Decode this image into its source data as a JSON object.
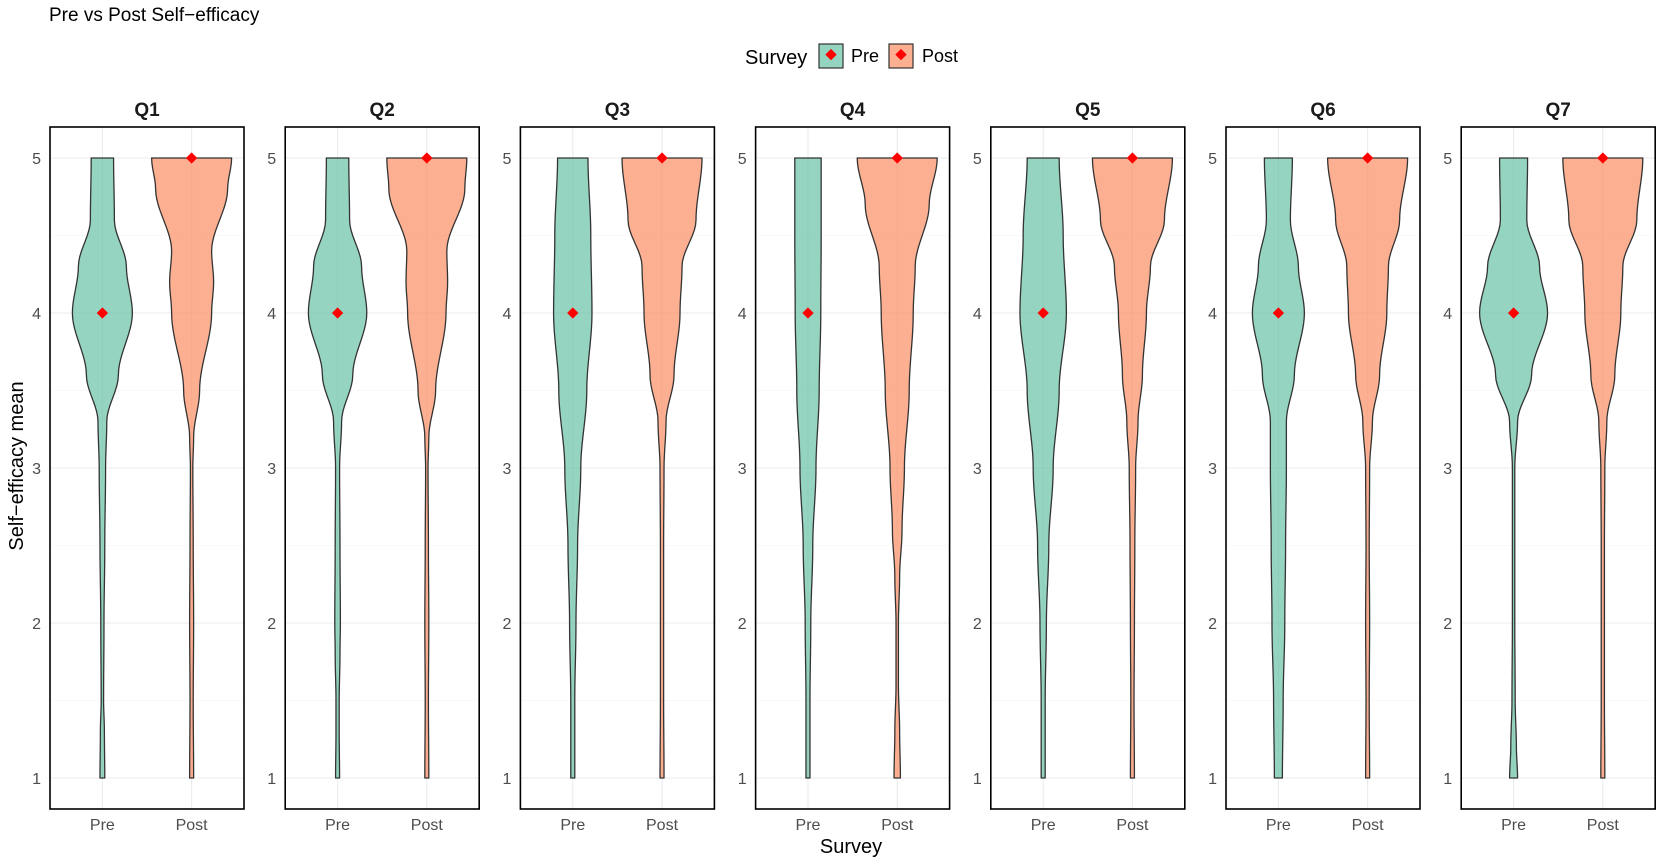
{
  "chart_data": {
    "type": "violin",
    "title": "Pre vs Post Self−efficacy",
    "xlabel": "Survey",
    "ylabel": "Self−efficacy mean",
    "ylim": [
      0.8,
      5.2
    ],
    "yticks": [
      1,
      2,
      3,
      4,
      5
    ],
    "categories": [
      "Pre",
      "Post"
    ],
    "grid": true,
    "legend": {
      "title": "Survey",
      "placement": "top",
      "entries": [
        {
          "name": "Pre",
          "color": "#66c2a5"
        },
        {
          "name": "Post",
          "color": "#fc8d62"
        }
      ]
    },
    "marker_color": "#ff0000",
    "panels": [
      {
        "label": "Q1",
        "pre": {
          "median": 4,
          "min": 1,
          "max": 5,
          "density": [
            [
              1,
              0.06
            ],
            [
              1.3,
              0.05
            ],
            [
              1.5,
              0.03
            ],
            [
              2,
              0.04
            ],
            [
              2.5,
              0.06
            ],
            [
              3,
              0.08
            ],
            [
              3.3,
              0.11
            ],
            [
              3.6,
              0.4
            ],
            [
              4,
              0.75
            ],
            [
              4.3,
              0.6
            ],
            [
              4.6,
              0.3
            ],
            [
              5,
              0.28
            ]
          ]
        },
        "post": {
          "median": 5,
          "min": 1,
          "max": 5,
          "density": [
            [
              1,
              0.05
            ],
            [
              1.5,
              0.04
            ],
            [
              2,
              0.05
            ],
            [
              2.5,
              0.04
            ],
            [
              3,
              0.03
            ],
            [
              3.2,
              0.05
            ],
            [
              3.5,
              0.2
            ],
            [
              4,
              0.5
            ],
            [
              4.2,
              0.55
            ],
            [
              4.4,
              0.5
            ],
            [
              4.8,
              0.9
            ],
            [
              5,
              1.0
            ]
          ]
        }
      },
      {
        "label": "Q2",
        "pre": {
          "median": 4,
          "min": 1,
          "max": 5,
          "density": [
            [
              1,
              0.05
            ],
            [
              1.3,
              0.04
            ],
            [
              1.5,
              0.04
            ],
            [
              1.8,
              0.06
            ],
            [
              2,
              0.07
            ],
            [
              2.5,
              0.06
            ],
            [
              3,
              0.05
            ],
            [
              3.3,
              0.1
            ],
            [
              3.6,
              0.38
            ],
            [
              4,
              0.73
            ],
            [
              4.3,
              0.6
            ],
            [
              4.6,
              0.3
            ],
            [
              5,
              0.28
            ]
          ]
        },
        "post": {
          "median": 5,
          "min": 1,
          "max": 5,
          "density": [
            [
              1,
              0.05
            ],
            [
              1.5,
              0.04
            ],
            [
              2,
              0.05
            ],
            [
              2.5,
              0.04
            ],
            [
              3,
              0.03
            ],
            [
              3.2,
              0.05
            ],
            [
              3.5,
              0.22
            ],
            [
              4,
              0.48
            ],
            [
              4.2,
              0.52
            ],
            [
              4.4,
              0.5
            ],
            [
              4.8,
              0.95
            ],
            [
              5,
              1.0
            ]
          ]
        }
      },
      {
        "label": "Q3",
        "pre": {
          "median": 4,
          "min": 1,
          "max": 5,
          "density": [
            [
              1,
              0.05
            ],
            [
              1.5,
              0.05
            ],
            [
              2,
              0.08
            ],
            [
              2.5,
              0.12
            ],
            [
              3,
              0.2
            ],
            [
              3.5,
              0.35
            ],
            [
              4,
              0.48
            ],
            [
              4.5,
              0.45
            ],
            [
              5,
              0.38
            ]
          ]
        },
        "post": {
          "median": 5,
          "min": 1,
          "max": 5,
          "density": [
            [
              1,
              0.05
            ],
            [
              1.5,
              0.04
            ],
            [
              2,
              0.04
            ],
            [
              2.5,
              0.04
            ],
            [
              3,
              0.05
            ],
            [
              3.3,
              0.1
            ],
            [
              3.6,
              0.3
            ],
            [
              4,
              0.45
            ],
            [
              4.3,
              0.5
            ],
            [
              4.6,
              0.85
            ],
            [
              5,
              1.0
            ]
          ]
        }
      },
      {
        "label": "Q4",
        "pre": {
          "median": 4,
          "min": 1,
          "max": 5,
          "density": [
            [
              1,
              0.05
            ],
            [
              1.5,
              0.05
            ],
            [
              2,
              0.07
            ],
            [
              2.5,
              0.12
            ],
            [
              3,
              0.2
            ],
            [
              3.5,
              0.28
            ],
            [
              4,
              0.32
            ],
            [
              4.5,
              0.33
            ],
            [
              5,
              0.33
            ]
          ]
        },
        "post": {
          "median": 5,
          "min": 1,
          "max": 5,
          "density": [
            [
              1,
              0.08
            ],
            [
              1.3,
              0.06
            ],
            [
              1.6,
              0.03
            ],
            [
              2,
              0.03
            ],
            [
              2.3,
              0.06
            ],
            [
              2.6,
              0.12
            ],
            [
              3,
              0.18
            ],
            [
              3.5,
              0.3
            ],
            [
              4,
              0.4
            ],
            [
              4.3,
              0.45
            ],
            [
              4.7,
              0.8
            ],
            [
              5,
              1.0
            ]
          ]
        }
      },
      {
        "label": "Q5",
        "pre": {
          "median": 4,
          "min": 1,
          "max": 5,
          "density": [
            [
              1,
              0.05
            ],
            [
              1.5,
              0.05
            ],
            [
              2,
              0.08
            ],
            [
              2.5,
              0.14
            ],
            [
              3,
              0.25
            ],
            [
              3.5,
              0.4
            ],
            [
              4,
              0.58
            ],
            [
              4.5,
              0.5
            ],
            [
              5,
              0.4
            ]
          ]
        },
        "post": {
          "median": 5,
          "min": 1,
          "max": 5,
          "density": [
            [
              1,
              0.05
            ],
            [
              1.5,
              0.04
            ],
            [
              2,
              0.05
            ],
            [
              2.5,
              0.06
            ],
            [
              3,
              0.08
            ],
            [
              3.3,
              0.14
            ],
            [
              3.6,
              0.25
            ],
            [
              4,
              0.35
            ],
            [
              4.3,
              0.45
            ],
            [
              4.6,
              0.8
            ],
            [
              5,
              1.0
            ]
          ]
        }
      },
      {
        "label": "Q6",
        "pre": {
          "median": 4,
          "min": 1,
          "max": 5,
          "density": [
            [
              1,
              0.1
            ],
            [
              1.5,
              0.12
            ],
            [
              2,
              0.16
            ],
            [
              2.5,
              0.18
            ],
            [
              3,
              0.2
            ],
            [
              3.3,
              0.2
            ],
            [
              3.6,
              0.4
            ],
            [
              4,
              0.65
            ],
            [
              4.3,
              0.5
            ],
            [
              4.6,
              0.3
            ],
            [
              5,
              0.35
            ]
          ]
        },
        "post": {
          "median": 5,
          "min": 1,
          "max": 5,
          "density": [
            [
              1,
              0.05
            ],
            [
              1.5,
              0.04
            ],
            [
              2,
              0.05
            ],
            [
              2.5,
              0.04
            ],
            [
              3,
              0.05
            ],
            [
              3.3,
              0.12
            ],
            [
              3.6,
              0.3
            ],
            [
              4,
              0.48
            ],
            [
              4.3,
              0.52
            ],
            [
              4.6,
              0.8
            ],
            [
              5,
              1.0
            ]
          ]
        }
      },
      {
        "label": "Q7",
        "pre": {
          "median": 4,
          "min": 1,
          "max": 5,
          "density": [
            [
              1,
              0.1
            ],
            [
              1.2,
              0.07
            ],
            [
              1.5,
              0.04
            ],
            [
              2,
              0.03
            ],
            [
              2.5,
              0.03
            ],
            [
              3,
              0.03
            ],
            [
              3.3,
              0.1
            ],
            [
              3.6,
              0.45
            ],
            [
              4,
              0.85
            ],
            [
              4.3,
              0.65
            ],
            [
              4.6,
              0.33
            ],
            [
              5,
              0.35
            ]
          ]
        },
        "post": {
          "median": 5,
          "min": 1,
          "max": 5,
          "density": [
            [
              1,
              0.05
            ],
            [
              1.5,
              0.04
            ],
            [
              2,
              0.04
            ],
            [
              2.5,
              0.04
            ],
            [
              3,
              0.05
            ],
            [
              3.3,
              0.1
            ],
            [
              3.6,
              0.3
            ],
            [
              4,
              0.45
            ],
            [
              4.3,
              0.5
            ],
            [
              4.6,
              0.85
            ],
            [
              5,
              1.0
            ]
          ]
        }
      }
    ]
  }
}
